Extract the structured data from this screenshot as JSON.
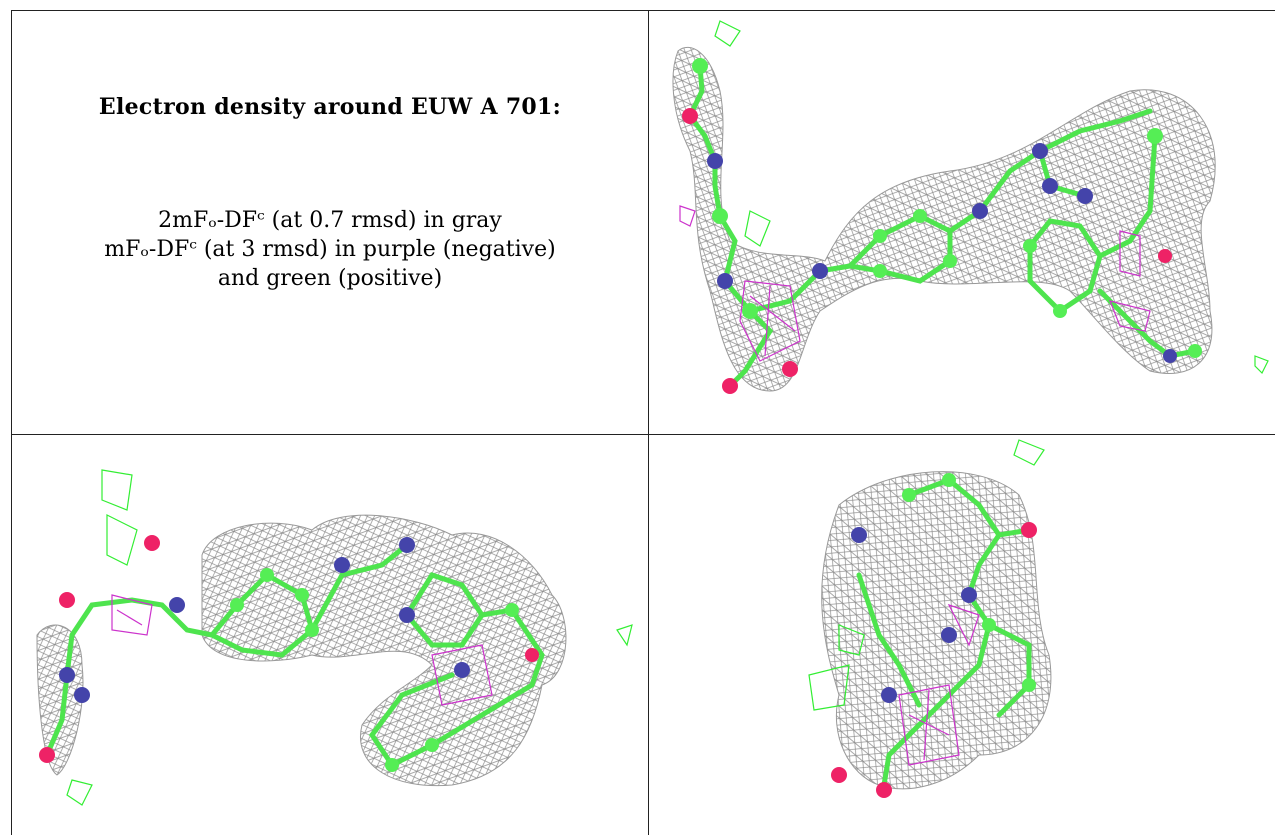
{
  "caption": {
    "title": "Electron density around EUW A 701:",
    "line1": "2mFₒ-DFᶜ (at 0.7 rmsd) in gray",
    "line2": "mFₒ-DFᶜ (at 3 rmsd) in purple (negative)",
    "line3": "and green (positive)"
  },
  "legend_colors": {
    "density_2fo_fc": "#8c8c8c",
    "negative_difference": "#cc33cc",
    "positive_difference": "#33ee33",
    "carbon": "#55ee55",
    "nitrogen": "#4444aa",
    "oxygen": "#ee2266"
  },
  "panels": [
    {
      "name": "view-top-right"
    },
    {
      "name": "view-bottom-left"
    },
    {
      "name": "view-bottom-right"
    }
  ]
}
